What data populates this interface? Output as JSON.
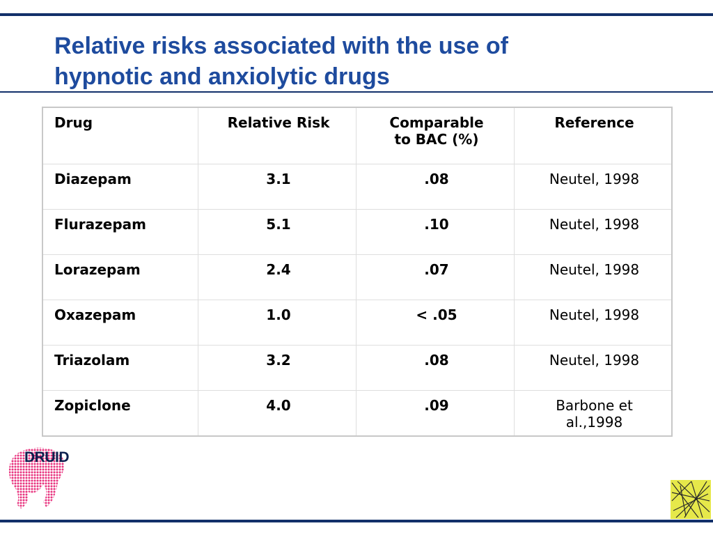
{
  "slide": {
    "title_line1": "Relative risks associated with the use of",
    "title_line2": "hypnotic and anxiolytic drugs"
  },
  "table": {
    "headers": {
      "drug": "Drug",
      "relative_risk": "Relative Risk",
      "comparable_line1": "Comparable",
      "comparable_line2": "to BAC (%)",
      "reference": "Reference"
    },
    "rows": [
      {
        "drug": "Diazepam",
        "rr": "3.1",
        "bac": ".08",
        "ref": "Neutel, 1998"
      },
      {
        "drug": "Flurazepam",
        "rr": "5.1",
        "bac": ".10",
        "ref": "Neutel, 1998"
      },
      {
        "drug": "Lorazepam",
        "rr": "2.4",
        "bac": ".07",
        "ref": "Neutel, 1998"
      },
      {
        "drug": "Oxazepam",
        "rr": "1.0",
        "bac": "< .05",
        "ref": "Neutel, 1998"
      },
      {
        "drug": "Triazolam",
        "rr": "3.2",
        "bac": ".08",
        "ref": "Neutel, 1998"
      },
      {
        "drug": "Zopiclone",
        "rr": "4.0",
        "bac": ".09",
        "ref": "Barbone et al.,1998"
      }
    ]
  },
  "logos": {
    "druid_label": "DRUID",
    "druid_icon": "elephant-dotted-logo",
    "corner_icon": "crosshatch-logo"
  },
  "colors": {
    "title": "#1e4b9e",
    "rules": "#12306a",
    "druid_pink": "#e8357f",
    "corner_yellow": "#e6e84a"
  }
}
